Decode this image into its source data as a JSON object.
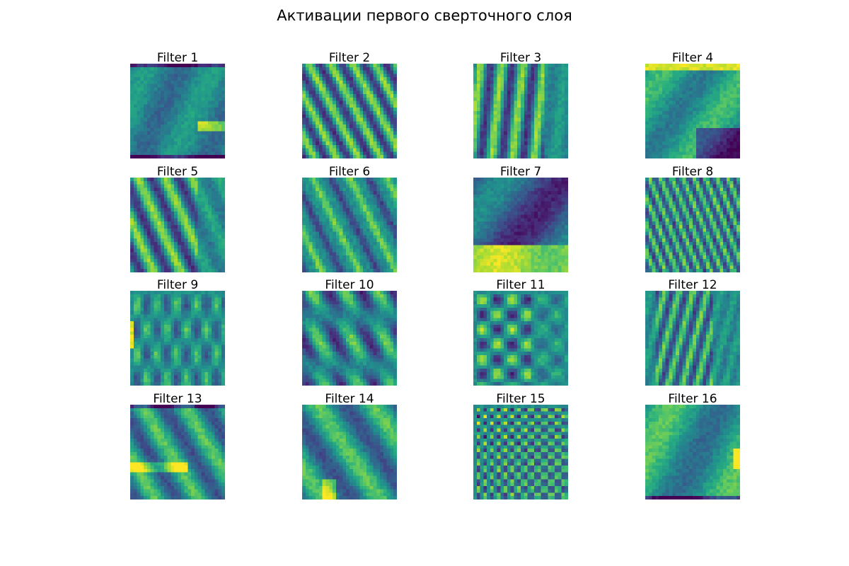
{
  "chart_data": {
    "type": "heatmap",
    "title": "Активации первого сверточного слоя",
    "colormap": "viridis",
    "grid": false,
    "axes_visible": false,
    "layout": {
      "rows": 4,
      "cols": 4
    },
    "panels": [
      {
        "title": "Filter 1",
        "pattern": "horizontal-band-bright-right"
      },
      {
        "title": "Filter 2",
        "pattern": "diagonal-stripes"
      },
      {
        "title": "Filter 3",
        "pattern": "vertical-stripes"
      },
      {
        "title": "Filter 4",
        "pattern": "bright-top-dark-bottom"
      },
      {
        "title": "Filter 5",
        "pattern": "diagonal-edges"
      },
      {
        "title": "Filter 6",
        "pattern": "sparse-diagonal"
      },
      {
        "title": "Filter 7",
        "pattern": "dark-top-bright-bottom"
      },
      {
        "title": "Filter 8",
        "pattern": "fine-diagonal-stripes"
      },
      {
        "title": "Filter 9",
        "pattern": "grid-edges"
      },
      {
        "title": "Filter 10",
        "pattern": "blob-diagonal"
      },
      {
        "title": "Filter 11",
        "pattern": "checker-blobs"
      },
      {
        "title": "Filter 12",
        "pattern": "vertical-fine"
      },
      {
        "title": "Filter 13",
        "pattern": "mixed-edges"
      },
      {
        "title": "Filter 14",
        "pattern": "smooth-diagonal"
      },
      {
        "title": "Filter 15",
        "pattern": "high-frequency-checker"
      },
      {
        "title": "Filter 16",
        "pattern": "smooth-bands"
      }
    ]
  }
}
